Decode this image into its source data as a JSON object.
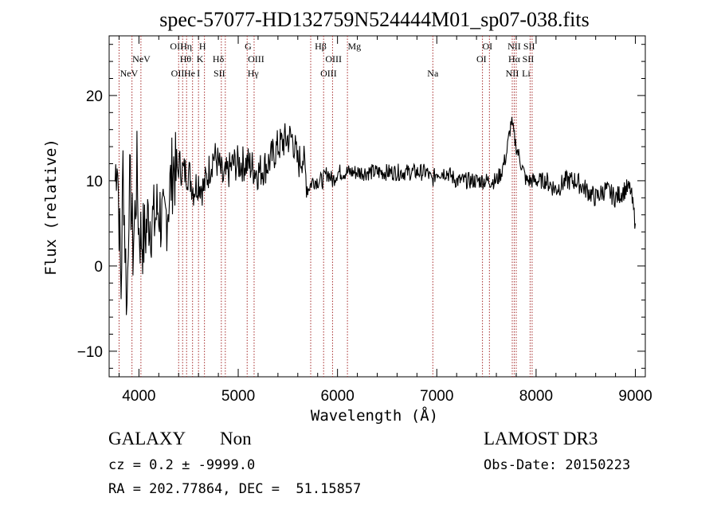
{
  "chart_data": {
    "type": "line",
    "title": "spec-57077-HD132759N524444M01_sp07-038.fits",
    "xlabel": "Wavelength (Å)",
    "ylabel": "Flux (relative)",
    "xlim": [
      3700,
      9100
    ],
    "ylim": [
      -13,
      27
    ],
    "x_ticks": [
      4000,
      5000,
      6000,
      7000,
      8000,
      9000
    ],
    "y_ticks": [
      -10,
      0,
      10,
      20
    ],
    "grid": false,
    "series": [
      {
        "name": "flux",
        "x": [
          3760,
          3780,
          3800,
          3820,
          3840,
          3860,
          3880,
          3900,
          3920,
          3940,
          3960,
          3980,
          4000,
          4050,
          4100,
          4150,
          4200,
          4250,
          4300,
          4350,
          4380,
          4400,
          4450,
          4500,
          4550,
          4600,
          4650,
          4700,
          4750,
          4800,
          4850,
          4900,
          4950,
          5000,
          5100,
          5200,
          5300,
          5400,
          5500,
          5550,
          5600,
          5650,
          5700,
          5750,
          5800,
          5850,
          5900,
          5950,
          6000,
          6100,
          6200,
          6300,
          6400,
          6500,
          6600,
          6700,
          6800,
          6900,
          6950,
          7000,
          7100,
          7200,
          7300,
          7400,
          7500,
          7600,
          7650,
          7700,
          7750,
          7800,
          7850,
          7900,
          8000,
          8100,
          8200,
          8300,
          8400,
          8500,
          8600,
          8700,
          8800,
          8900,
          8950,
          9000
        ],
        "y": [
          10,
          14,
          6,
          -3,
          12,
          3,
          -5,
          9,
          8,
          2,
          6,
          11,
          4,
          3,
          6,
          5,
          7,
          4,
          8,
          12,
          10,
          12,
          11,
          11,
          9,
          10,
          9,
          11,
          13,
          12,
          10,
          11,
          12,
          12,
          12,
          11,
          12,
          14,
          15,
          15,
          12,
          13,
          9,
          10,
          10,
          10,
          11,
          10,
          11,
          11,
          11,
          11,
          11,
          11,
          11,
          11,
          11,
          11,
          10,
          11,
          11,
          10,
          10,
          10,
          10,
          10,
          11,
          13,
          17,
          14,
          12,
          10,
          10,
          10,
          9,
          10,
          10,
          9,
          8,
          9,
          8,
          9,
          9,
          5
        ]
      }
    ],
    "spectral_lines": [
      {
        "name": "NeV",
        "x": 3426,
        "row": 1,
        "visible": false
      },
      {
        "name": "NeV",
        "x": 3900,
        "row": 2
      },
      {
        "name": "NeV",
        "x": 4025,
        "row": 1
      },
      {
        "name": "OII",
        "x": 4380,
        "row": 0
      },
      {
        "name": "Hη",
        "x": 4475,
        "row": 0
      },
      {
        "name": "H",
        "x": 4640,
        "row": 0
      },
      {
        "name": "Hθ",
        "x": 4470,
        "row": 1
      },
      {
        "name": "K",
        "x": 4615,
        "row": 1
      },
      {
        "name": "Hδ",
        "x": 4800,
        "row": 1
      },
      {
        "name": "OII",
        "x": 4390,
        "row": 2
      },
      {
        "name": "He",
        "x": 4510,
        "row": 2
      },
      {
        "name": "I",
        "x": 4600,
        "row": 2
      },
      {
        "name": "SII",
        "x": 4810,
        "row": 2
      },
      {
        "name": "G",
        "x": 5100,
        "row": 0
      },
      {
        "name": "OIII",
        "x": 5180,
        "row": 1
      },
      {
        "name": "Hγ",
        "x": 5150,
        "row": 2
      },
      {
        "name": "Hβ",
        "x": 5830,
        "row": 0
      },
      {
        "name": "OIII",
        "x": 5960,
        "row": 1
      },
      {
        "name": "OIII",
        "x": 5910,
        "row": 2
      },
      {
        "name": "Mg",
        "x": 6170,
        "row": 0
      },
      {
        "name": "Na",
        "x": 6960,
        "row": 2
      },
      {
        "name": "OI",
        "x": 7510,
        "row": 0
      },
      {
        "name": "OI",
        "x": 7450,
        "row": 1
      },
      {
        "name": "NII",
        "x": 7780,
        "row": 0
      },
      {
        "name": "SII",
        "x": 7930,
        "row": 0
      },
      {
        "name": "Hα",
        "x": 7780,
        "row": 1
      },
      {
        "name": "SII",
        "x": 7920,
        "row": 1
      },
      {
        "name": "NII",
        "x": 7760,
        "row": 2
      },
      {
        "name": "Li",
        "x": 7900,
        "row": 2
      }
    ],
    "line_markers": [
      3800,
      3930,
      4020,
      4400,
      4440,
      4480,
      4540,
      4600,
      4660,
      4830,
      4870,
      5090,
      5160,
      5730,
      5860,
      5950,
      6100,
      6960,
      7460,
      7530,
      7760,
      7780,
      7800,
      7940,
      7960
    ],
    "annotation_text": {
      "class": "GALAXY",
      "subclass": "Non",
      "survey": "LAMOST DR3",
      "cz": "cz = 0.2 ± -9999.0",
      "obs_date": "Obs-Date: 20150223",
      "coords": "RA = 202.77864, DEC =  51.15857"
    }
  }
}
